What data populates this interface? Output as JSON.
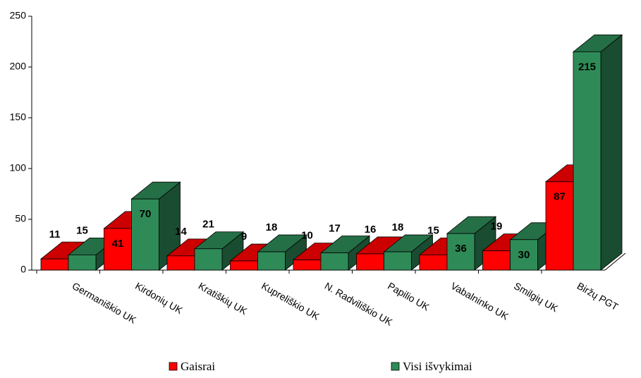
{
  "chart_data": {
    "type": "bar3d",
    "categories": [
      "Germaniškio UK",
      "Kirdonių UK",
      "Kratiškių UK",
      "Kupreliškio UK",
      "N. Radviliškio UK",
      "Papilio UK",
      "Vabalninko UK",
      "Smilgių UK",
      "Biržų PGT"
    ],
    "series": [
      {
        "name": "Gaisrai",
        "color": "#ff0000",
        "values": [
          11,
          41,
          14,
          9,
          10,
          16,
          15,
          19,
          87
        ]
      },
      {
        "name": "Visi išvykimai",
        "color": "#2e8b57",
        "values": [
          15,
          70,
          21,
          18,
          17,
          18,
          36,
          30,
          215
        ]
      }
    ],
    "ylim": [
      0,
      250
    ],
    "yticks": [
      0,
      50,
      100,
      150,
      200,
      250
    ]
  }
}
